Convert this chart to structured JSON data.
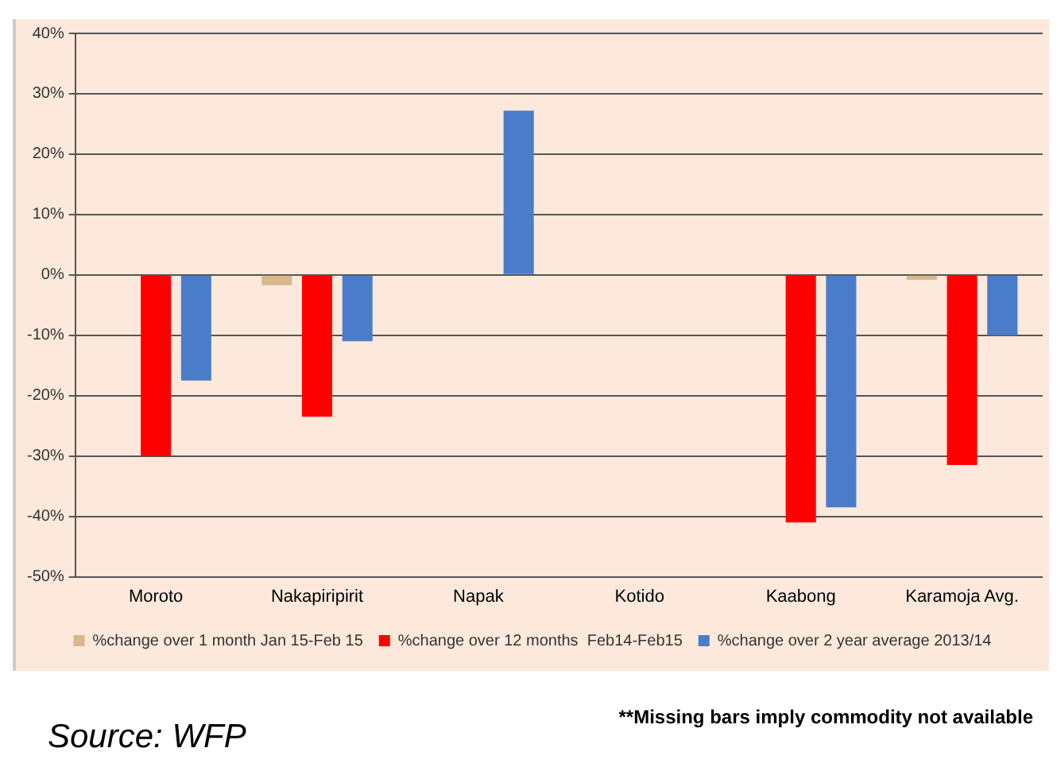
{
  "chart_data": {
    "type": "bar",
    "categories": [
      "Moroto",
      "Nakapiripirit",
      "Napak",
      "Kotido",
      "Kaabong",
      "Karamoja Avg."
    ],
    "series": [
      {
        "name": "%change over 1 month Jan 15-Feb 15",
        "color": "#d8b88c",
        "values": [
          null,
          -1.7,
          null,
          null,
          null,
          -0.8
        ]
      },
      {
        "name": "%change over 12 months  Feb14-Feb15",
        "color": "#ff0000",
        "values": [
          -30,
          -23.5,
          null,
          null,
          -41,
          -31.5
        ]
      },
      {
        "name": "%change over 2 year average 2013/14",
        "color": "#4a7cc9",
        "values": [
          -17.5,
          -11,
          27.2,
          null,
          -38.5,
          -10
        ]
      }
    ],
    "ylim": [
      -50,
      40
    ],
    "yticks": [
      {
        "value": -50,
        "label": "-50%"
      },
      {
        "value": -40,
        "label": "-40%"
      },
      {
        "value": -30,
        "label": "-30%"
      },
      {
        "value": -20,
        "label": "-20%"
      },
      {
        "value": -10,
        "label": "-10%"
      },
      {
        "value": 0,
        "label": "0%"
      },
      {
        "value": 10,
        "label": "10%"
      },
      {
        "value": 20,
        "label": "20%"
      },
      {
        "value": 30,
        "label": "30%"
      },
      {
        "value": 40,
        "label": "40%"
      }
    ],
    "grid": "y",
    "legend": "bottom",
    "annotations": [
      "Source: WFP",
      "**Missing bars imply commodity not available"
    ]
  }
}
